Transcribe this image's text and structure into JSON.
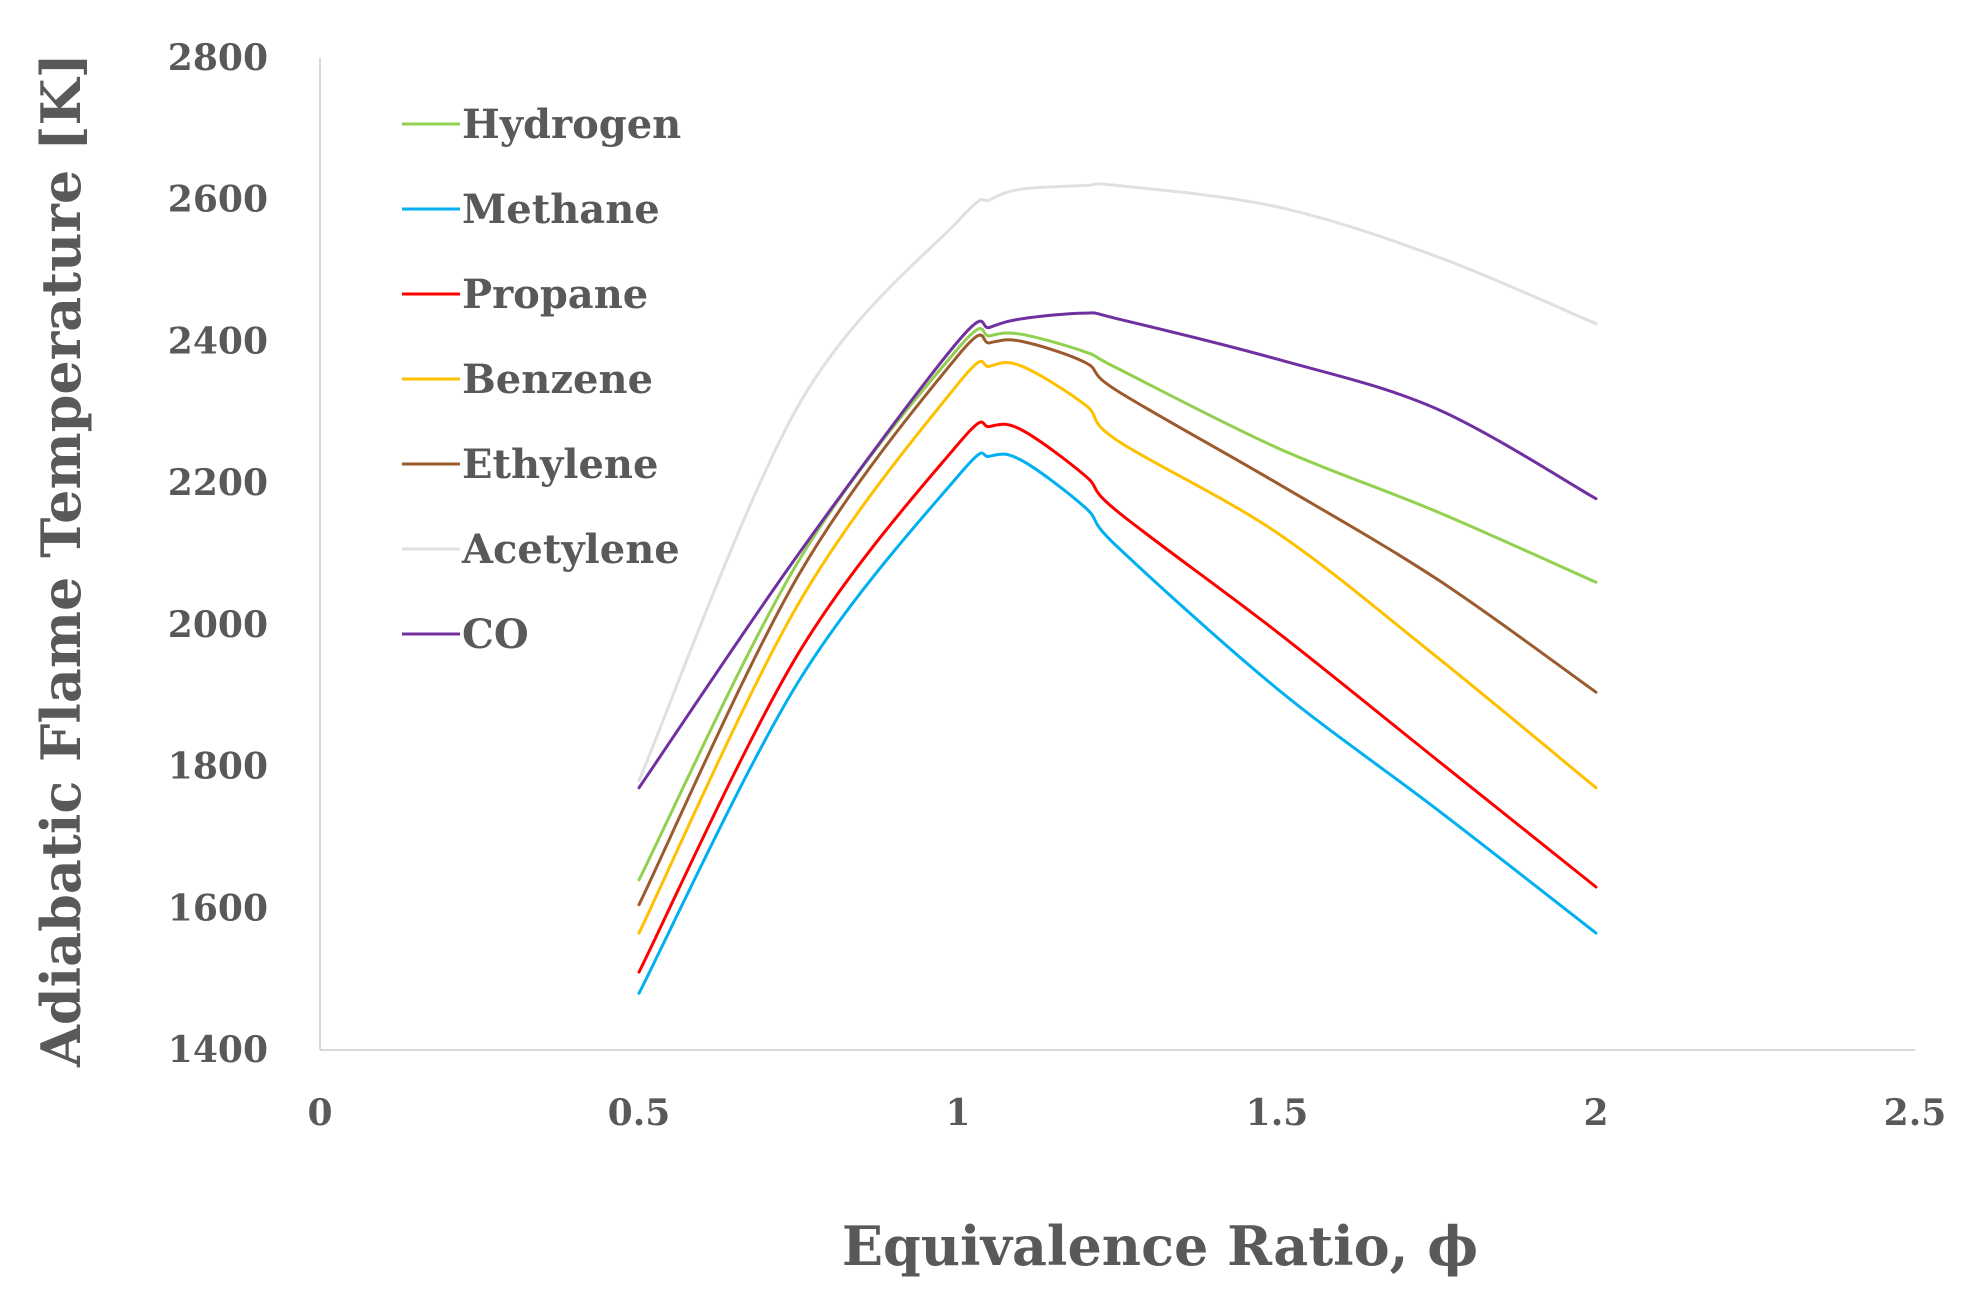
{
  "chart_data": {
    "type": "line",
    "title": "",
    "xlabel": "Equivalence Ratio, ϕ",
    "ylabel": "Adiabatic Flame Temperature [K]",
    "xlim": [
      0,
      2.5
    ],
    "ylim": [
      1400,
      2800
    ],
    "xticks": [
      "0",
      "0.5",
      "1",
      "1.5",
      "2",
      "2.5"
    ],
    "yticks": [
      "1400",
      "1600",
      "1800",
      "2000",
      "2200",
      "2400",
      "2600",
      "2800"
    ],
    "grid": false,
    "legend_position": "top-left",
    "x": [
      0.5,
      0.75,
      1.0,
      1.05,
      1.1,
      1.2,
      1.25,
      1.5,
      1.75,
      2.0
    ],
    "series": [
      {
        "name": "Hydrogen",
        "color": "#92d050",
        "values": [
          1640,
          2090,
          2390,
          2408,
          2410,
          2385,
          2362,
          2250,
          2160,
          2060
        ]
      },
      {
        "name": "Methane",
        "color": "#00b0f0",
        "values": [
          1480,
          1920,
          2210,
          2238,
          2232,
          2165,
          2110,
          1910,
          1740,
          1565
        ]
      },
      {
        "name": "Propane",
        "color": "#ff0000",
        "values": [
          1510,
          1960,
          2255,
          2280,
          2275,
          2210,
          2160,
          1990,
          1810,
          1630
        ]
      },
      {
        "name": "Benzene",
        "color": "#ffc000",
        "values": [
          1565,
          2030,
          2340,
          2365,
          2365,
          2310,
          2260,
          2130,
          1955,
          1770
        ]
      },
      {
        "name": "Ethylene",
        "color": "#9c5b2e",
        "values": [
          1605,
          2070,
          2380,
          2398,
          2400,
          2370,
          2330,
          2200,
          2065,
          1905
        ]
      },
      {
        "name": "Acetylene",
        "color": "#e0e0e0",
        "values": [
          1780,
          2310,
          2570,
          2600,
          2615,
          2620,
          2620,
          2590,
          2520,
          2425
        ]
      },
      {
        "name": "CO",
        "color": "#7030a0",
        "values": [
          1770,
          2100,
          2400,
          2420,
          2432,
          2440,
          2432,
          2375,
          2305,
          2178
        ]
      }
    ]
  }
}
